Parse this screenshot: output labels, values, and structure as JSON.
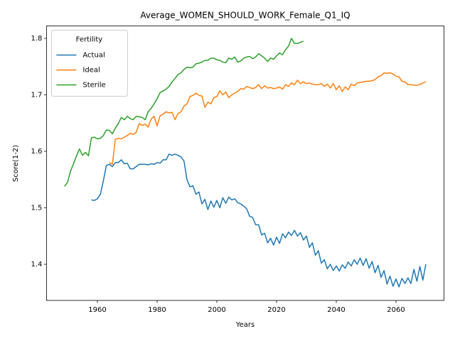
{
  "chart_data": {
    "type": "line",
    "title": "Average_WOMEN_SHOULD_WORK_Female_Q1_IQ",
    "xlabel": "Years",
    "ylabel": "Score(1-2)",
    "legend_title": "Fertility",
    "legend_loc": "upper left",
    "grid": false,
    "xlim": [
      1942.95,
      2076.05
    ],
    "ylim": [
      1.336,
      1.822
    ],
    "xticks": [
      1960,
      1980,
      2000,
      2020,
      2040,
      2060
    ],
    "yticks": [
      1.4,
      1.5,
      1.6,
      1.7,
      1.8
    ],
    "x": [
      1949,
      1950,
      1951,
      1952,
      1953,
      1954,
      1955,
      1956,
      1957,
      1958,
      1959,
      1960,
      1961,
      1962,
      1963,
      1964,
      1965,
      1966,
      1967,
      1968,
      1969,
      1970,
      1971,
      1972,
      1973,
      1974,
      1975,
      1976,
      1977,
      1978,
      1979,
      1980,
      1981,
      1982,
      1983,
      1984,
      1985,
      1986,
      1987,
      1988,
      1989,
      1990,
      1991,
      1992,
      1993,
      1994,
      1995,
      1996,
      1997,
      1998,
      1999,
      2000,
      2001,
      2002,
      2003,
      2004,
      2005,
      2006,
      2007,
      2008,
      2009,
      2010,
      2011,
      2012,
      2013,
      2014,
      2015,
      2016,
      2017,
      2018,
      2019,
      2020,
      2021,
      2022,
      2023,
      2024,
      2025,
      2026,
      2027,
      2028,
      2029,
      2030,
      2031,
      2032,
      2033,
      2034,
      2035,
      2036,
      2037,
      2038,
      2039,
      2040,
      2041,
      2042,
      2043,
      2044,
      2045,
      2046,
      2047,
      2048,
      2049,
      2050,
      2051,
      2052,
      2053,
      2054,
      2055,
      2056,
      2057,
      2058,
      2059,
      2060,
      2061,
      2062,
      2063,
      2064,
      2065,
      2066,
      2067,
      2068,
      2069,
      2070
    ],
    "series": [
      {
        "name": "Actual",
        "color": "#1f77b4",
        "values": [
          null,
          null,
          null,
          null,
          null,
          null,
          null,
          null,
          null,
          1.514,
          1.513,
          1.516,
          1.524,
          1.548,
          1.575,
          1.577,
          1.573,
          1.58,
          1.58,
          1.585,
          1.578,
          1.579,
          1.569,
          1.569,
          1.573,
          1.577,
          1.577,
          1.577,
          1.576,
          1.578,
          1.577,
          1.58,
          1.579,
          1.585,
          1.585,
          1.595,
          1.593,
          1.595,
          1.593,
          1.59,
          1.583,
          1.55,
          1.537,
          1.539,
          1.524,
          1.528,
          1.507,
          1.515,
          1.497,
          1.512,
          1.501,
          1.513,
          1.5,
          1.518,
          1.508,
          1.519,
          1.514,
          1.516,
          1.509,
          1.507,
          1.503,
          1.498,
          1.485,
          1.483,
          1.47,
          1.47,
          1.452,
          1.455,
          1.438,
          1.446,
          1.434,
          1.448,
          1.437,
          1.454,
          1.447,
          1.457,
          1.451,
          1.46,
          1.45,
          1.456,
          1.443,
          1.45,
          1.43,
          1.438,
          1.416,
          1.424,
          1.402,
          1.408,
          1.392,
          1.4,
          1.389,
          1.397,
          1.388,
          1.399,
          1.393,
          1.404,
          1.397,
          1.408,
          1.4,
          1.411,
          1.398,
          1.41,
          1.393,
          1.405,
          1.385,
          1.398,
          1.377,
          1.389,
          1.365,
          1.379,
          1.361,
          1.374,
          1.36,
          1.375,
          1.366,
          1.376,
          1.366,
          1.391,
          1.37,
          1.396,
          1.372,
          1.4
        ]
      },
      {
        "name": "Ideal",
        "color": "#ff7f0e",
        "values": [
          null,
          null,
          null,
          null,
          null,
          null,
          null,
          null,
          null,
          null,
          null,
          null,
          null,
          null,
          null,
          1.58,
          1.577,
          1.621,
          1.623,
          1.622,
          1.625,
          1.628,
          1.632,
          1.63,
          1.634,
          1.649,
          1.646,
          1.648,
          1.643,
          1.657,
          1.662,
          1.645,
          1.663,
          1.666,
          1.67,
          1.668,
          1.669,
          1.656,
          1.667,
          1.67,
          1.68,
          1.684,
          1.697,
          1.699,
          1.703,
          1.699,
          1.698,
          1.678,
          1.687,
          1.684,
          1.695,
          1.697,
          1.707,
          1.7,
          1.705,
          1.695,
          1.7,
          1.703,
          1.706,
          1.711,
          1.71,
          1.715,
          1.713,
          1.711,
          1.713,
          1.718,
          1.711,
          1.716,
          1.712,
          1.713,
          1.711,
          1.712,
          1.714,
          1.71,
          1.718,
          1.715,
          1.721,
          1.718,
          1.726,
          1.72,
          1.723,
          1.72,
          1.721,
          1.719,
          1.718,
          1.718,
          1.72,
          1.715,
          1.719,
          1.712,
          1.72,
          1.709,
          1.716,
          1.706,
          1.714,
          1.709,
          1.719,
          1.716,
          1.721,
          1.722,
          1.723,
          1.724,
          1.724,
          1.725,
          1.727,
          1.732,
          1.734,
          1.739,
          1.738,
          1.739,
          1.737,
          1.733,
          1.732,
          1.724,
          1.723,
          1.718,
          1.718,
          1.717,
          1.717,
          1.718,
          1.721,
          1.723
        ]
      },
      {
        "name": "Sterile",
        "color": "#2ca02c",
        "values": [
          1.538,
          1.545,
          1.565,
          1.578,
          1.592,
          1.604,
          1.593,
          1.598,
          1.592,
          1.624,
          1.625,
          1.622,
          1.623,
          1.628,
          1.638,
          1.637,
          1.631,
          1.641,
          1.649,
          1.66,
          1.656,
          1.662,
          1.658,
          1.656,
          1.662,
          1.661,
          1.66,
          1.656,
          1.67,
          1.676,
          1.684,
          1.693,
          1.704,
          1.707,
          1.71,
          1.715,
          1.723,
          1.729,
          1.736,
          1.739,
          1.745,
          1.749,
          1.748,
          1.749,
          1.755,
          1.756,
          1.758,
          1.761,
          1.761,
          1.765,
          1.765,
          1.762,
          1.761,
          1.758,
          1.757,
          1.765,
          1.763,
          1.767,
          1.758,
          1.76,
          1.765,
          1.767,
          1.768,
          1.764,
          1.767,
          1.773,
          1.769,
          1.765,
          1.759,
          1.765,
          1.763,
          1.769,
          1.774,
          1.771,
          1.78,
          1.786,
          1.8,
          1.791,
          1.791,
          1.793,
          1.795,
          null,
          null,
          null,
          null,
          null,
          null,
          null,
          null,
          null,
          null,
          null,
          null,
          null,
          null,
          null,
          null,
          null,
          null,
          null,
          null,
          null,
          null,
          null,
          null,
          null,
          null,
          null,
          null,
          null,
          null,
          null,
          null,
          null,
          null,
          null,
          null,
          null,
          null,
          null,
          null,
          null
        ]
      }
    ]
  }
}
